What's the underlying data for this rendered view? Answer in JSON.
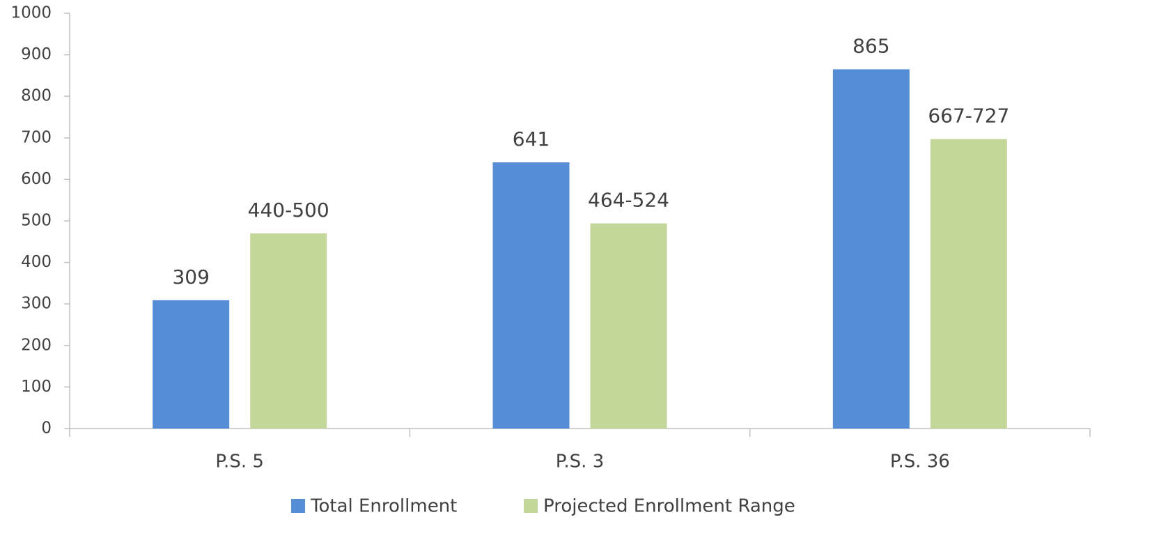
{
  "chart_data": {
    "type": "bar",
    "categories": [
      "P.S. 5",
      "P.S. 3",
      "P.S. 36"
    ],
    "series": [
      {
        "name": "Total Enrollment",
        "color": "#558ed5",
        "values": [
          309,
          641,
          865
        ]
      },
      {
        "name": "Projected Enrollment Range",
        "color": "#c4d79b",
        "values": [
          470,
          494,
          697
        ],
        "value_labels": [
          "440-500",
          "464-524",
          "667-727"
        ]
      }
    ],
    "ylim": [
      0,
      1000
    ],
    "yticks": [
      0,
      100,
      200,
      300,
      400,
      500,
      600,
      700,
      800,
      900,
      1000
    ],
    "grid": false,
    "legend": "bottom"
  }
}
